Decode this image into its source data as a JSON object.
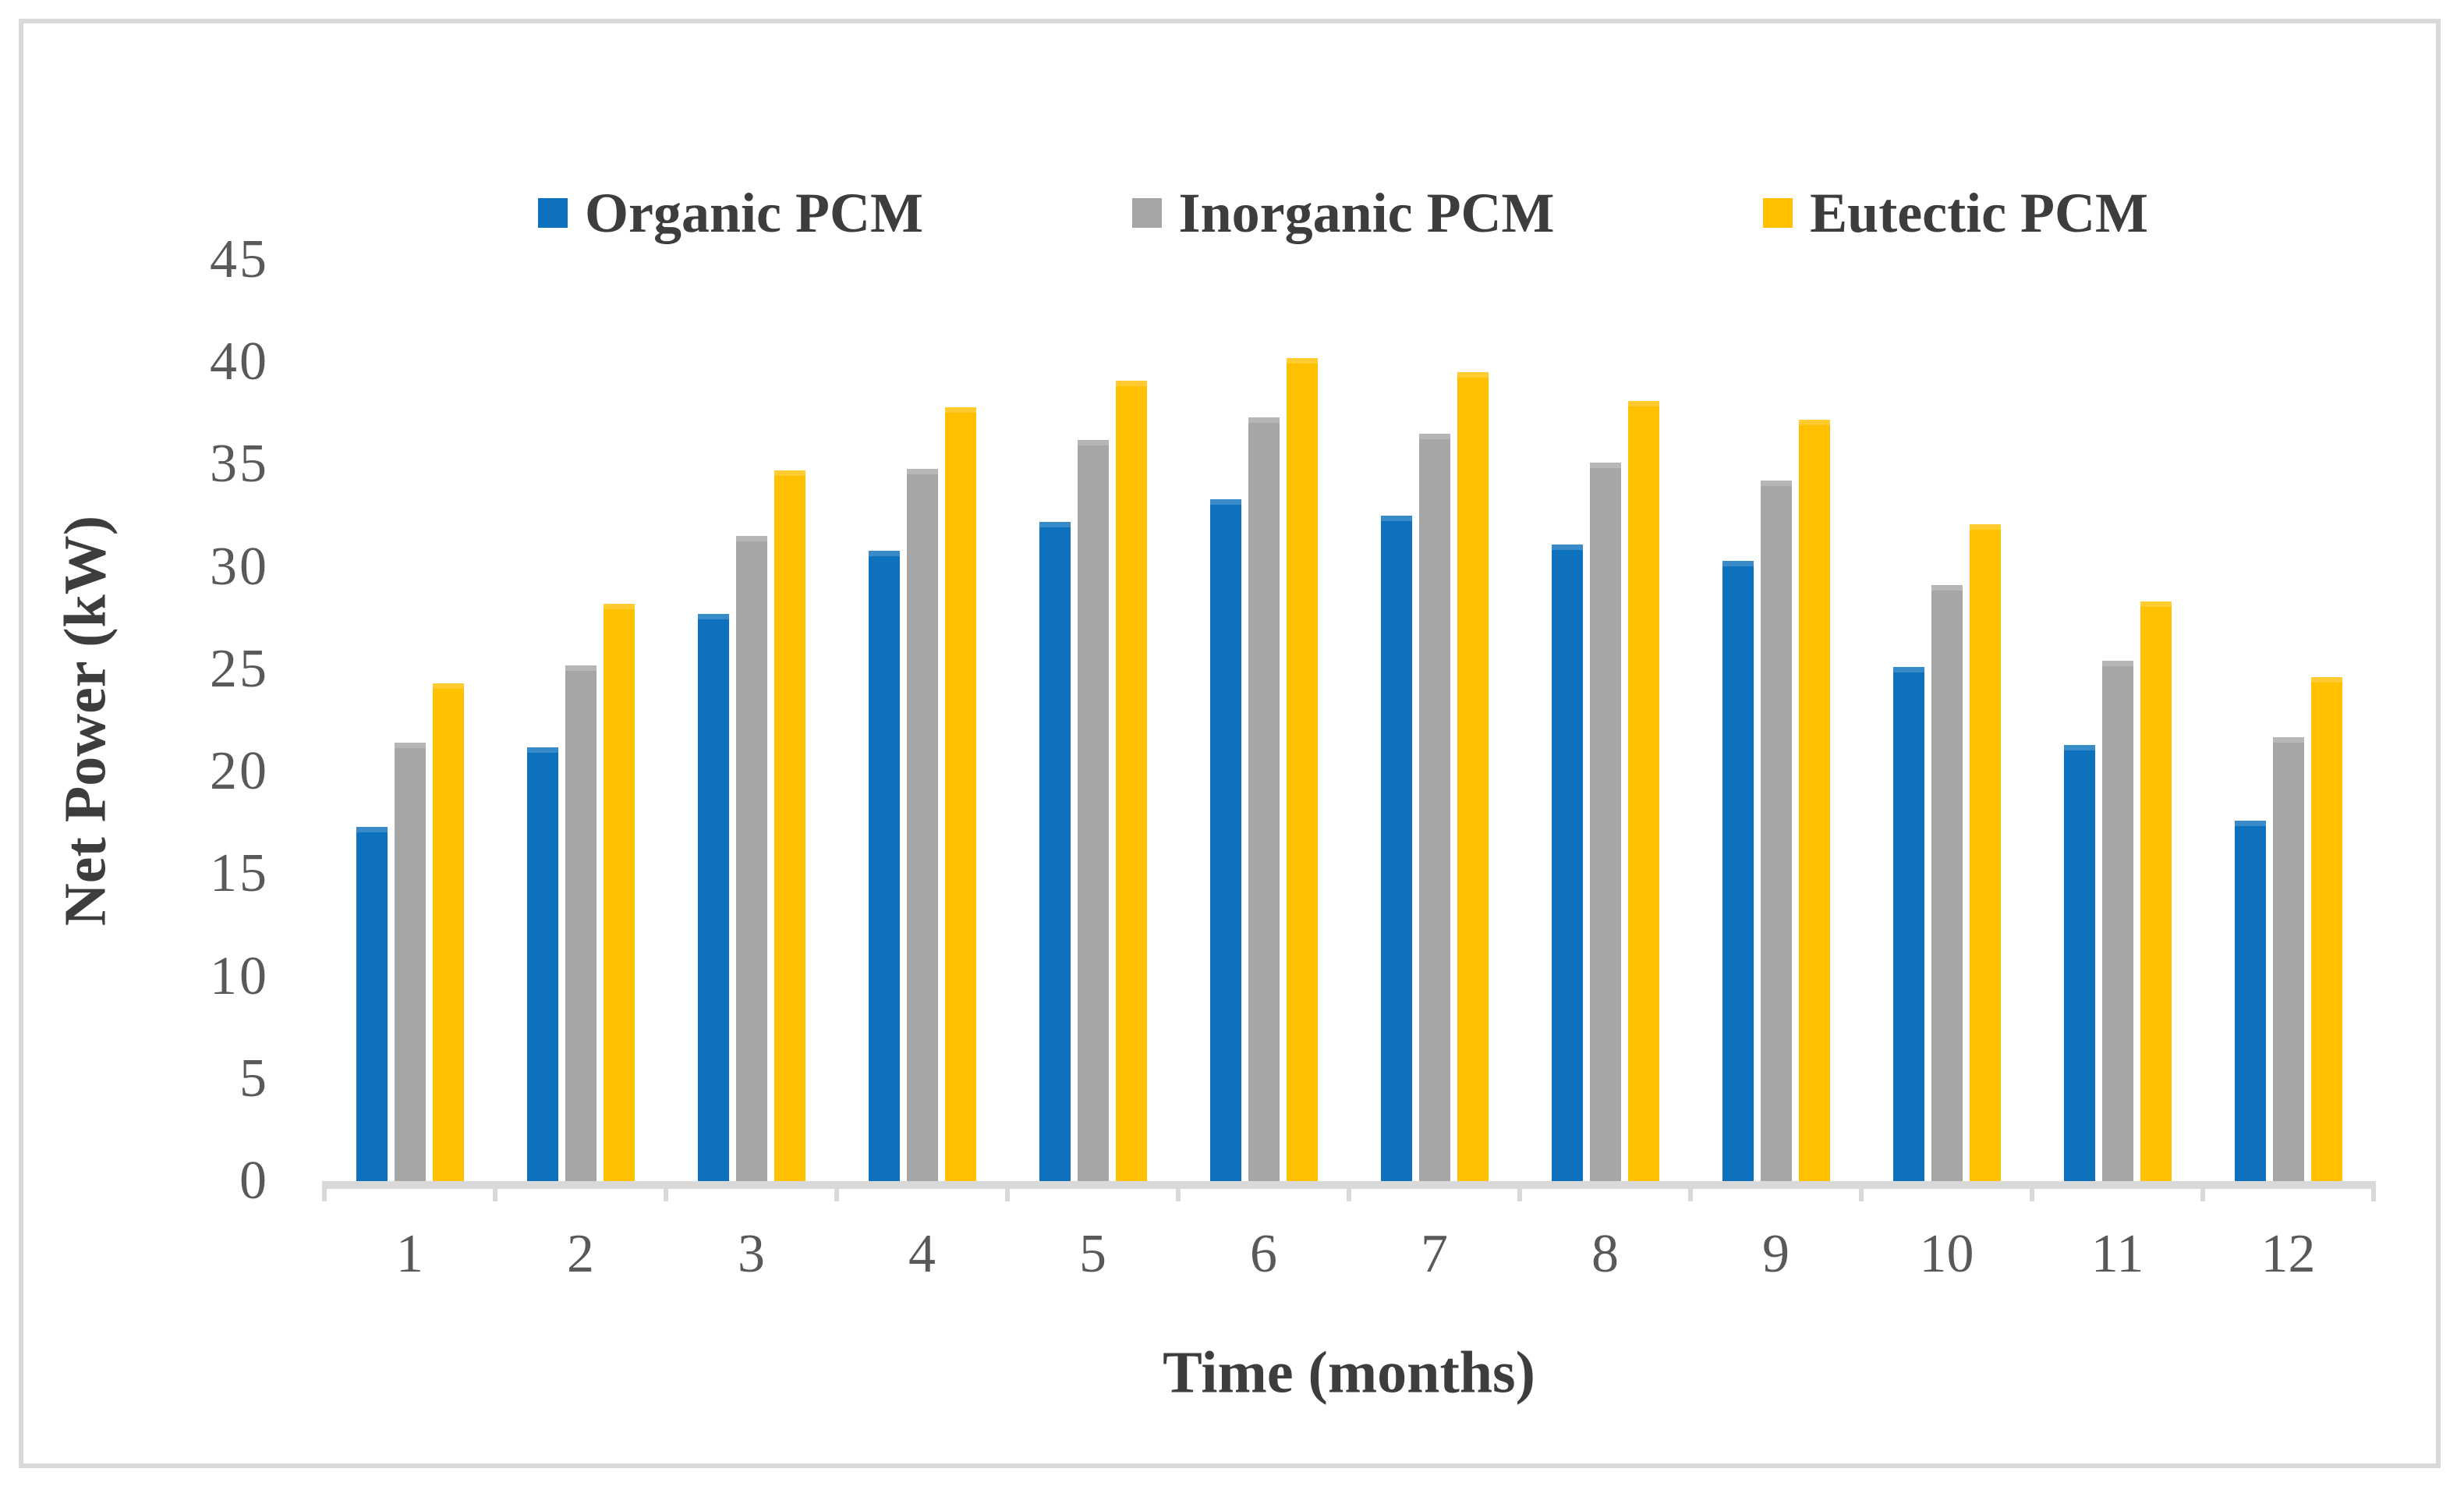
{
  "chart_data": {
    "type": "bar",
    "title": "",
    "xlabel": "Time (months)",
    "ylabel": "Net Power (kW)",
    "categories": [
      "1",
      "2",
      "3",
      "4",
      "5",
      "6",
      "7",
      "8",
      "9",
      "10",
      "11",
      "12"
    ],
    "series": [
      {
        "name": "Organic PCM",
        "color": "#0E71BD",
        "values": [
          17.3,
          21.2,
          27.7,
          30.8,
          32.2,
          33.3,
          32.5,
          31.1,
          30.3,
          25.1,
          21.3,
          17.6
        ]
      },
      {
        "name": "Inorganic PCM",
        "color": "#A6A6A6",
        "values": [
          21.4,
          25.2,
          31.5,
          34.8,
          36.2,
          37.3,
          36.5,
          35.1,
          34.2,
          29.1,
          25.4,
          21.7
        ]
      },
      {
        "name": "Eutectic PCM",
        "color": "#FFC000",
        "values": [
          24.3,
          28.2,
          34.7,
          37.8,
          39.1,
          40.2,
          39.5,
          38.1,
          37.2,
          32.1,
          28.3,
          24.6
        ]
      }
    ],
    "ylim": [
      0,
      45
    ],
    "yticks": [
      0,
      5,
      10,
      15,
      20,
      25,
      30,
      35,
      40,
      45
    ],
    "grid": false,
    "legend_position": "top",
    "axis_line_color": "#D9D9D9",
    "tick_text_color": "#595959",
    "title_text_color": "#3D3D3D"
  }
}
